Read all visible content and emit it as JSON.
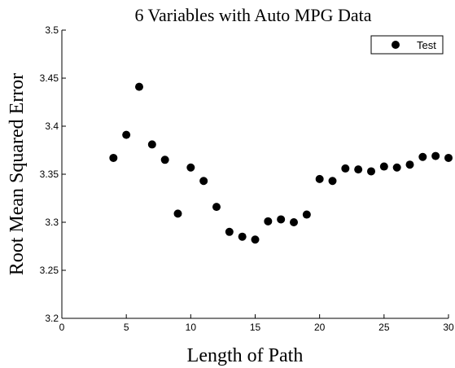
{
  "chart_data": {
    "type": "scatter",
    "title": "6 Variables with Auto MPG Data",
    "xlabel": "Length of Path",
    "ylabel": "Root Mean Squared Error",
    "xlim": [
      0,
      30
    ],
    "ylim": [
      3.2,
      3.5
    ],
    "xticks": [
      "0",
      "5",
      "10",
      "15",
      "20",
      "25",
      "30"
    ],
    "yticks": [
      "3.2",
      "3.25",
      "3.3",
      "3.35",
      "3.4",
      "3.45",
      "3.5"
    ],
    "grid": false,
    "legend_position": "top-right",
    "series": [
      {
        "name": "Test",
        "color": "#000000",
        "marker": "circle",
        "x": [
          4,
          5,
          6,
          7,
          8,
          9,
          10,
          11,
          12,
          13,
          14,
          15,
          16,
          17,
          18,
          19,
          20,
          21,
          22,
          23,
          24,
          25,
          26,
          27,
          28,
          29,
          30
        ],
        "y": [
          3.367,
          3.391,
          3.441,
          3.381,
          3.365,
          3.309,
          3.357,
          3.343,
          3.316,
          3.29,
          3.285,
          3.282,
          3.301,
          3.303,
          3.3,
          3.308,
          3.345,
          3.343,
          3.356,
          3.355,
          3.353,
          3.358,
          3.357,
          3.36,
          3.368,
          3.369,
          3.367
        ]
      }
    ]
  }
}
